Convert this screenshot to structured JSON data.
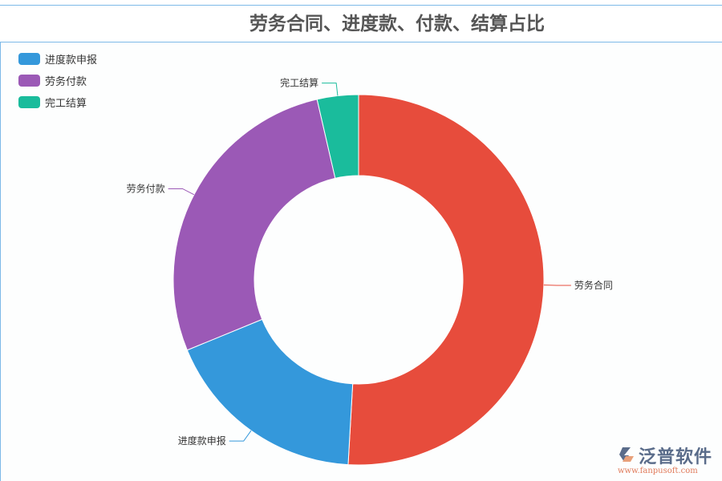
{
  "chart_data": {
    "type": "pie",
    "subtype": "donut",
    "title": "劳务合同、进度款、付款、结算占比",
    "slices": [
      {
        "name": "劳务合同",
        "percent": 50.9,
        "color": "#e74c3c"
      },
      {
        "name": "进度款申报",
        "percent": 17.9,
        "color": "#3498db"
      },
      {
        "name": "劳务付款",
        "percent": 27.6,
        "color": "#9b59b6"
      },
      {
        "name": "完工结算",
        "percent": 3.6,
        "color": "#1abc9c"
      }
    ],
    "legend": {
      "placement": "top-left",
      "entries": [
        {
          "name": "进度款申报",
          "color": "#3498db"
        },
        {
          "name": "劳务付款",
          "color": "#9b59b6"
        },
        {
          "name": "完工结算",
          "color": "#1abc9c"
        }
      ]
    }
  },
  "logo": {
    "name": "泛普软件",
    "url": "www.fanpusoft.com"
  }
}
